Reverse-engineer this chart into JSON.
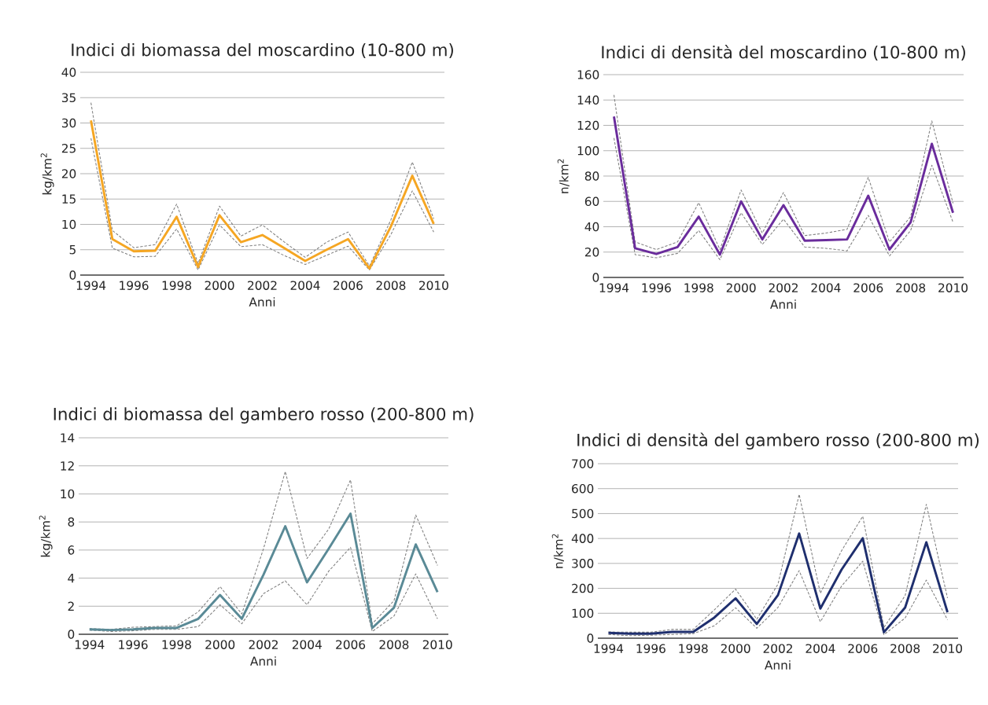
{
  "chart_data": [
    {
      "type": "line",
      "title": "Indici di biomassa del moscardino (10-800 m)",
      "xlabel": "Anni",
      "ylabel": "kg/km$^{2}$",
      "categories": [
        "1994",
        null,
        "1996",
        null,
        "1998",
        null,
        "2000",
        null,
        "2002",
        null,
        "2004",
        null,
        "2006",
        null,
        "2008",
        null,
        "2010"
      ],
      "ylim": [
        0,
        40
      ],
      "yticks": [
        0,
        5,
        10,
        15,
        20,
        25,
        30,
        35,
        40
      ],
      "grid": "y",
      "series": [
        {
          "color": "#f5a623",
          "line_style": "solid",
          "values": [
            30.5,
            7.1,
            4.7,
            4.8,
            11.5,
            1.6,
            11.8,
            6.5,
            7.9,
            5.4,
            2.8,
            5.0,
            7.1,
            1.3,
            9.6,
            19.6,
            10.1
          ]
        },
        {
          "color": "#808080",
          "line_style": "dashed",
          "values": [
            34,
            8.8,
            5.4,
            6.0,
            14,
            2.3,
            13.6,
            7.7,
            9.9,
            6.6,
            3.5,
            6.5,
            8.5,
            1.8,
            10.9,
            22.3,
            11.1
          ]
        },
        {
          "color": "#808080",
          "line_style": "dashed",
          "values": [
            27,
            5.3,
            3.6,
            3.7,
            9.1,
            1.0,
            9.9,
            5.6,
            6.0,
            3.9,
            2.1,
            3.9,
            5.7,
            1.0,
            8.0,
            16.6,
            8.5
          ]
        }
      ]
    },
    {
      "type": "line",
      "title": "Indici di densità del moscardino (10-800 m)",
      "xlabel": "Anni",
      "ylabel": "n/km$^{2}$",
      "categories": [
        "1994",
        null,
        "1996",
        null,
        "1998",
        null,
        "2000",
        null,
        "2002",
        null,
        "2004",
        null,
        "2006",
        null,
        "2008",
        null,
        "2010"
      ],
      "ylim": [
        0,
        160
      ],
      "yticks": [
        0,
        20,
        40,
        60,
        80,
        100,
        120,
        140,
        160
      ],
      "grid": "y",
      "series": [
        {
          "color": "#6a2c9c",
          "line_style": "solid",
          "values": [
            127,
            23,
            18.5,
            24,
            48,
            18,
            60,
            30,
            57,
            29,
            29.5,
            30,
            64.5,
            22,
            43.5,
            105.5,
            51
          ]
        },
        {
          "color": "#808080",
          "line_style": "dashed",
          "values": [
            144,
            28,
            22,
            28,
            59,
            22,
            69,
            35,
            67,
            33,
            35,
            38,
            79,
            28,
            48,
            123.5,
            58.5
          ]
        },
        {
          "color": "#808080",
          "line_style": "dashed",
          "values": [
            110,
            18,
            15.5,
            19,
            37,
            14,
            51,
            26,
            46,
            24,
            23,
            21,
            49,
            17,
            37,
            88.5,
            43.5
          ]
        }
      ]
    },
    {
      "type": "line",
      "title": "Indici di biomassa del gambero rosso (200-800 m)",
      "xlabel": "Anni",
      "ylabel": "kg/km$^{2}$",
      "categories": [
        "1994",
        null,
        "1996",
        null,
        "1998",
        null,
        "2000",
        null,
        "2002",
        null,
        "2004",
        null,
        "2006",
        null,
        "2008",
        null,
        "2010"
      ],
      "ylim": [
        0,
        14
      ],
      "yticks": [
        0,
        2,
        4,
        6,
        8,
        10,
        12,
        14
      ],
      "grid": "y",
      "series": [
        {
          "color": "#5a8a96",
          "line_style": "solid",
          "values": [
            0.35,
            0.3,
            0.35,
            0.45,
            0.45,
            1.1,
            2.8,
            1.1,
            4.25,
            7.7,
            3.7,
            6.1,
            8.6,
            0.45,
            1.9,
            6.4,
            3.0
          ]
        },
        {
          "color": "#808080",
          "line_style": "dashed",
          "values": [
            0.4,
            0.35,
            0.5,
            0.55,
            0.6,
            1.6,
            3.4,
            1.45,
            6.1,
            11.6,
            5.4,
            7.5,
            11.0,
            0.75,
            2.4,
            8.5,
            4.9
          ]
        },
        {
          "color": "#808080",
          "line_style": "dashed",
          "values": [
            0.3,
            0.2,
            0.25,
            0.35,
            0.35,
            0.55,
            2.1,
            0.75,
            2.9,
            3.8,
            2.1,
            4.5,
            6.2,
            0.2,
            1.3,
            4.3,
            1.1
          ]
        }
      ]
    },
    {
      "type": "line",
      "title": "Indici di densità del gambero rosso (200-800 m)",
      "xlabel": "Anni",
      "ylabel": "n/km$^{2}$",
      "categories": [
        "1994",
        null,
        "1996",
        null,
        "1998",
        null,
        "2000",
        null,
        "2002",
        null,
        "2004",
        null,
        "2006",
        null,
        "2008",
        null,
        "2010"
      ],
      "ylim": [
        0,
        700
      ],
      "yticks": [
        0,
        100,
        200,
        300,
        400,
        500,
        600,
        700
      ],
      "grid": "y",
      "series": [
        {
          "color": "#1f2f6e",
          "line_style": "solid",
          "values": [
            21,
            18,
            18,
            25,
            25,
            83,
            160,
            57,
            173,
            420,
            119,
            275,
            401,
            24,
            123,
            385,
            104
          ]
        },
        {
          "color": "#808080",
          "line_style": "dashed",
          "values": [
            25,
            24,
            24,
            35,
            35,
            114,
            197,
            76,
            217,
            577,
            180,
            351,
            489,
            43,
            171,
            537,
            161
          ]
        },
        {
          "color": "#808080",
          "line_style": "dashed",
          "values": [
            15,
            10,
            12,
            15,
            18,
            50,
            122,
            40,
            123,
            271,
            66,
            209,
            309,
            14,
            81,
            233,
            74
          ]
        }
      ]
    }
  ]
}
